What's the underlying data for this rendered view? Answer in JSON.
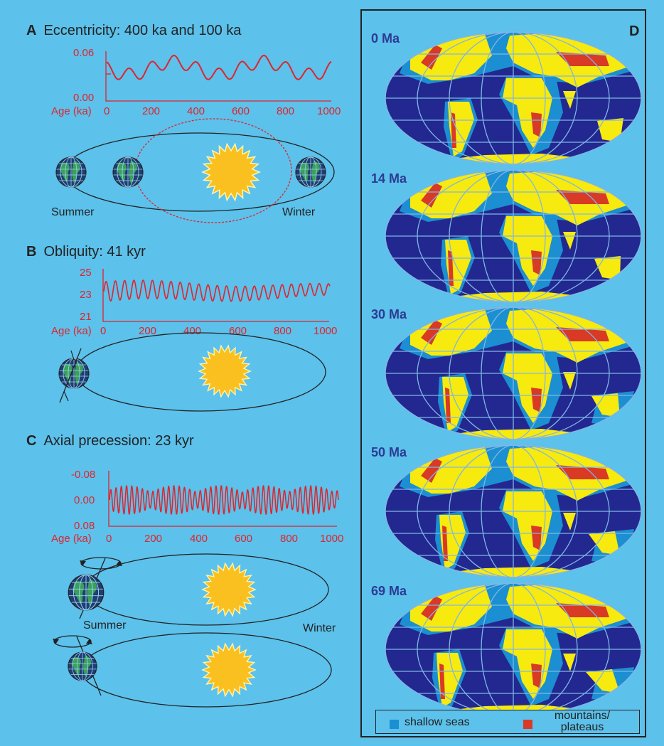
{
  "panels": {
    "A": {
      "letter": "A",
      "title": "Eccentricity: 400 ka and 100 ka",
      "y_ticks": [
        "0.06",
        "0.00"
      ],
      "x_ticks": [
        "0",
        "200",
        "400",
        "600",
        "800",
        "1000"
      ],
      "x_label": "Age (ka)",
      "seasons": {
        "summer": "Summer",
        "winter": "Winter"
      }
    },
    "B": {
      "letter": "B",
      "title": "Obliquity: 41 kyr",
      "y_ticks": [
        "25",
        "23",
        "21"
      ],
      "x_ticks": [
        "0",
        "200",
        "400",
        "600",
        "800",
        "1000"
      ],
      "x_label": "Age (ka)"
    },
    "C": {
      "letter": "C",
      "title": "Axial precession: 23 kyr",
      "y_ticks": [
        "-0.08",
        "0.00",
        "0.08"
      ],
      "x_ticks": [
        "0",
        "200",
        "400",
        "600",
        "800",
        "1000"
      ],
      "x_label": "Age (ka)",
      "seasons": {
        "summer": "Summer",
        "winter": "Winter"
      }
    },
    "D": {
      "letter": "D",
      "maps": [
        "0 Ma",
        "14 Ma",
        "30 Ma",
        "50 Ma",
        "69 Ma"
      ],
      "legend": {
        "shallow": "shallow seas",
        "mountains_l1": "mountains/",
        "mountains_l2": "plateaus"
      }
    }
  },
  "colors": {
    "background": "#5cc1eb",
    "curve": "#e0242c",
    "ocean": "#22288f",
    "land": "#f7ea0f",
    "shallow": "#1b8fd1",
    "mountain": "#d83a26",
    "sun": "#f9c01f",
    "grid": "#7fb6e6"
  }
}
